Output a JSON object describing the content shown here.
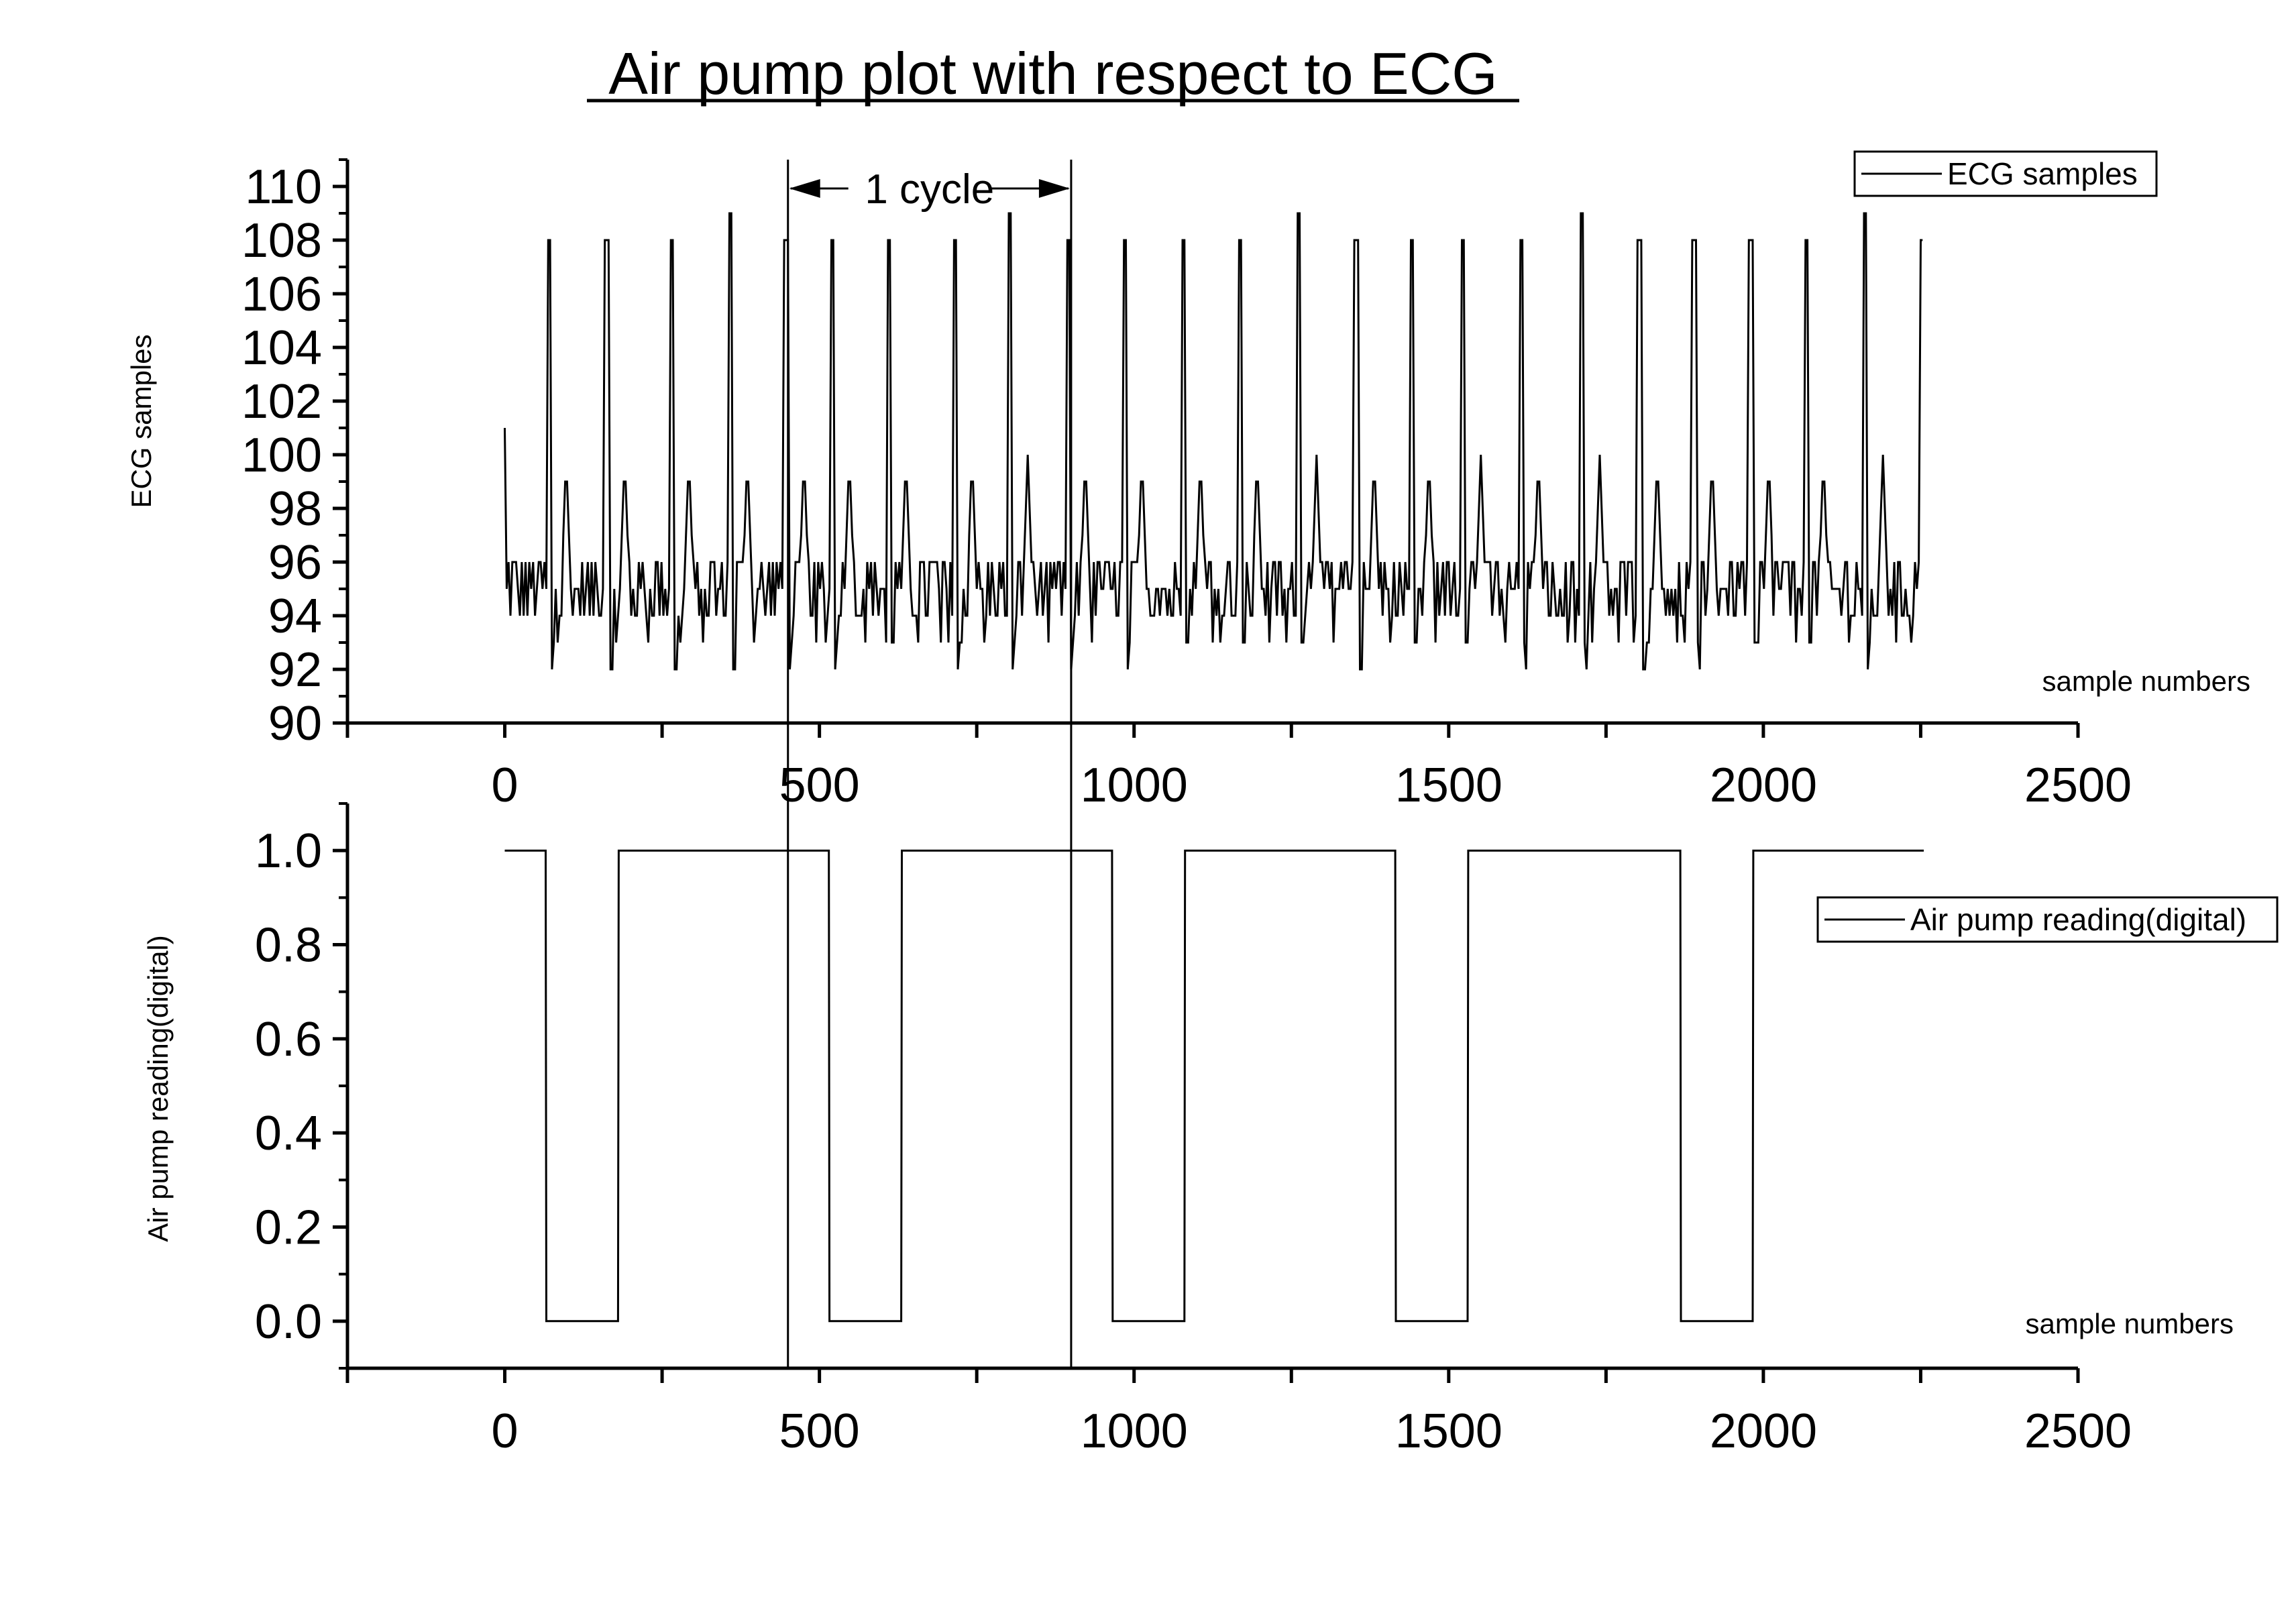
{
  "title": "Air pump plot with respect to ECG",
  "chart_data": [
    {
      "type": "line",
      "ylabel": "ECG samples",
      "xlabel": "sample numbers",
      "xlim": [
        -250,
        2500
      ],
      "ylim": [
        90,
        111
      ],
      "x_ticks": [
        "0",
        "500",
        "1000",
        "1500",
        "2000",
        "2500"
      ],
      "x_tick_values": [
        0,
        500,
        1000,
        1500,
        2000,
        2500
      ],
      "y_ticks": [
        "90",
        "92",
        "94",
        "96",
        "98",
        "100",
        "102",
        "104",
        "106",
        "108",
        "110"
      ],
      "y_tick_values": [
        90,
        92,
        94,
        96,
        98,
        100,
        102,
        104,
        106,
        108,
        110
      ],
      "legend": "top-right",
      "series": [
        {
          "name": "ECG samples",
          "beat_r_peaks": [
            70,
            162,
            265,
            358,
            447,
            520,
            610,
            715,
            803,
            895,
            985,
            1078,
            1168,
            1262,
            1353,
            1441,
            1523,
            1615,
            1712,
            1803,
            1890,
            1980,
            2068,
            2162,
            2253
          ],
          "beat_peak_values": [
            108,
            108,
            108,
            109,
            108,
            108,
            108,
            108,
            109,
            108,
            108,
            108,
            108,
            109,
            108,
            108,
            108,
            108,
            109,
            108,
            108,
            108,
            108,
            109,
            108
          ],
          "baseline_min": 93,
          "baseline_max": 96,
          "t_wave_value": 100,
          "trough_value": 92,
          "x_range": [
            0,
            2255
          ],
          "start_value": 101
        }
      ],
      "annotations": [
        {
          "text": "1 cycle",
          "x_start": 450,
          "x_end": 900,
          "y": 110
        }
      ],
      "cycle_markers_x": [
        450,
        900
      ]
    },
    {
      "type": "line",
      "ylabel": "Air pump reading(digital)",
      "xlabel": "sample numbers",
      "xlim": [
        -250,
        2500
      ],
      "ylim": [
        -0.1,
        1.1
      ],
      "x_ticks": [
        "0",
        "500",
        "1000",
        "1500",
        "2000",
        "2500"
      ],
      "x_tick_values": [
        0,
        500,
        1000,
        1500,
        2000,
        2500
      ],
      "y_ticks": [
        "0.0",
        "0.2",
        "0.4",
        "0.6",
        "0.8",
        "1.0"
      ],
      "y_tick_values": [
        0.0,
        0.2,
        0.4,
        0.6,
        0.8,
        1.0
      ],
      "legend": "top-right",
      "series": [
        {
          "name": "Air pump reading(digital)",
          "x": [
            0,
            65,
            66,
            180,
            181,
            515,
            516,
            630,
            631,
            965,
            966,
            1080,
            1081,
            1415,
            1416,
            1530,
            1531,
            1868,
            1869,
            1983,
            1984,
            2255
          ],
          "y": [
            1,
            1,
            0,
            0,
            1,
            1,
            0,
            0,
            1,
            1,
            0,
            0,
            1,
            1,
            0,
            0,
            1,
            1,
            0,
            0,
            1,
            1
          ]
        }
      ]
    }
  ]
}
